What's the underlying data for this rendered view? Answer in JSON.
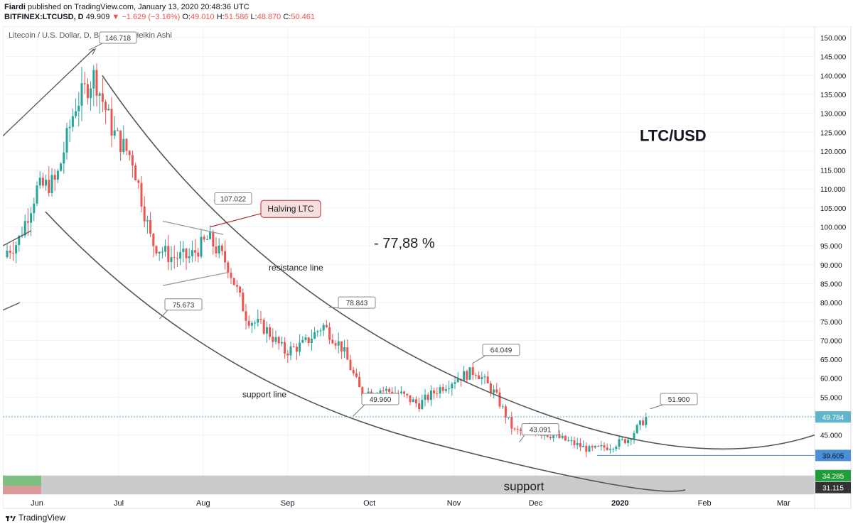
{
  "header": {
    "author": "Fiardi",
    "published_text": "published on TradingView.com, January 13, 2020 20:48:36 UTC",
    "symbol": "BITFINEX:LTCUSD, D",
    "last": "49.909",
    "change": "−1.629 (−3.16%)",
    "o_label": "O:",
    "o": "49.010",
    "h_label": "H:",
    "h": "51.586",
    "l_label": "L:",
    "l": "48.870",
    "c_label": "C:",
    "c": "50.461"
  },
  "footer": {
    "brand": "TradingView"
  },
  "colors": {
    "up": "#26a69a",
    "down": "#ef5350",
    "line": "#555555",
    "grid": "#f0f3fa"
  },
  "chart_data": {
    "type": "candlestick",
    "title": "Litecoin / U.S. Dollar, D, BITFINEX, Heikin Ashi",
    "watermark": "LTC/USD",
    "ylim": [
      30,
      152
    ],
    "y_ticks": [
      "150.000",
      "145.000",
      "140.000",
      "135.000",
      "130.000",
      "125.000",
      "120.000",
      "115.000",
      "110.000",
      "105.000",
      "100.000",
      "95.000",
      "90.000",
      "85.000",
      "80.000",
      "75.000",
      "70.000",
      "65.000",
      "60.000",
      "55.000",
      "50.000",
      "45.000"
    ],
    "x_ticks": [
      "Jun",
      "Jul",
      "Aug",
      "Sep",
      "Oct",
      "Nov",
      "Dec",
      "2020",
      "Feb",
      "Mar"
    ],
    "price_markers": [
      {
        "value": 49.784,
        "label": "49.784",
        "color": "#5fb5c9"
      },
      {
        "value": 39.605,
        "label": "39.605",
        "color": "#4a90d9"
      },
      {
        "value": 34.285,
        "label": "34.285",
        "color": "#1f9d3a"
      },
      {
        "value": 31.115,
        "label": "31.115",
        "color": "#333333"
      }
    ],
    "callouts": [
      {
        "label": "146.718",
        "date": "2019-06-20",
        "value": 146.7
      },
      {
        "label": "107.022",
        "date": "2019-08-05",
        "value": 107.0
      },
      {
        "label": "75.673",
        "date": "2019-07-16",
        "value": 75.7
      },
      {
        "label": "78.843",
        "date": "2019-09-16",
        "value": 78.8
      },
      {
        "label": "49.960",
        "date": "2019-09-25",
        "value": 50.0
      },
      {
        "label": "64.049",
        "date": "2019-11-08",
        "value": 64.0
      },
      {
        "label": "43.091",
        "date": "2019-11-25",
        "value": 43.1
      },
      {
        "label": "51.900",
        "date": "2020-01-12",
        "value": 51.9
      }
    ],
    "annotations": {
      "halving": "Halving LTC",
      "percent": "- 77,88 %",
      "resistance": "resistance line",
      "support_line": "support line",
      "support_zone": "support"
    },
    "series": [
      {
        "date": "2019-05-18",
        "close": 92
      },
      {
        "date": "2019-05-25",
        "close": 96
      },
      {
        "date": "2019-06-01",
        "close": 110
      },
      {
        "date": "2019-06-08",
        "close": 112
      },
      {
        "date": "2019-06-15",
        "close": 132
      },
      {
        "date": "2019-06-22",
        "close": 140
      },
      {
        "date": "2019-06-29",
        "close": 125
      },
      {
        "date": "2019-07-06",
        "close": 118
      },
      {
        "date": "2019-07-13",
        "close": 96
      },
      {
        "date": "2019-07-20",
        "close": 92
      },
      {
        "date": "2019-07-27",
        "close": 92
      },
      {
        "date": "2019-08-03",
        "close": 97
      },
      {
        "date": "2019-08-10",
        "close": 90
      },
      {
        "date": "2019-08-17",
        "close": 76
      },
      {
        "date": "2019-08-24",
        "close": 73
      },
      {
        "date": "2019-08-31",
        "close": 67
      },
      {
        "date": "2019-09-07",
        "close": 69
      },
      {
        "date": "2019-09-14",
        "close": 74
      },
      {
        "date": "2019-09-21",
        "close": 68
      },
      {
        "date": "2019-09-28",
        "close": 56
      },
      {
        "date": "2019-10-05",
        "close": 57
      },
      {
        "date": "2019-10-12",
        "close": 56
      },
      {
        "date": "2019-10-19",
        "close": 53
      },
      {
        "date": "2019-10-26",
        "close": 57
      },
      {
        "date": "2019-11-02",
        "close": 60
      },
      {
        "date": "2019-11-09",
        "close": 62
      },
      {
        "date": "2019-11-16",
        "close": 56
      },
      {
        "date": "2019-11-23",
        "close": 46
      },
      {
        "date": "2019-11-30",
        "close": 46
      },
      {
        "date": "2019-12-07",
        "close": 45
      },
      {
        "date": "2019-12-14",
        "close": 43
      },
      {
        "date": "2019-12-21",
        "close": 41
      },
      {
        "date": "2019-12-28",
        "close": 42
      },
      {
        "date": "2020-01-04",
        "close": 44
      },
      {
        "date": "2020-01-11",
        "close": 50
      }
    ]
  }
}
